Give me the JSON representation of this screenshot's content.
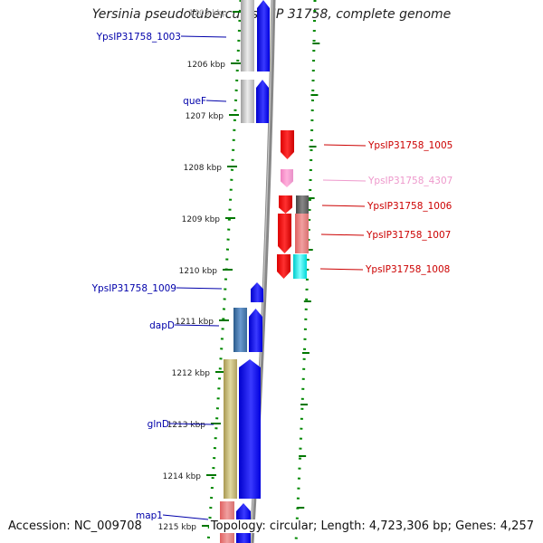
{
  "title": "Yersinia pseudotuberculosis IP 31758, complete genome",
  "footer": {
    "accession": "Accession: NC_009708",
    "stats": "Topology: circular; Length: 4,723,306 bp; Genes: 4,257"
  },
  "colors": {
    "backbone": "#808080",
    "forward_strand": "#0000ee",
    "reverse_strand": "#ee0000",
    "tick": "#007700",
    "left_label": "#0000aa",
    "right_label": "#cc0000",
    "faded_label": "#ee99cc"
  },
  "scale": {
    "unit": "kbp",
    "ticks": [
      "1205 kbp",
      "1206 kbp",
      "1207 kbp",
      "1208 kbp",
      "1209 kbp",
      "1210 kbp",
      "1211 kbp",
      "1212 kbp",
      "1213 kbp",
      "1214 kbp",
      "1215 kbp"
    ]
  },
  "left_labels": [
    {
      "text": "YpsIP31758_1003",
      "color": "#0000aa"
    },
    {
      "text": "queF",
      "color": "#0000aa"
    },
    {
      "text": "YpsIP31758_1009",
      "color": "#0000aa"
    },
    {
      "text": "dapD",
      "color": "#0000aa"
    },
    {
      "text": "glnD",
      "color": "#0000aa"
    },
    {
      "text": "map1",
      "color": "#0000aa"
    }
  ],
  "right_labels": [
    {
      "text": "YpsIP31758_1005",
      "color": "#cc0000"
    },
    {
      "text": "YpsIP31758_4307",
      "color": "#ee99cc"
    },
    {
      "text": "YpsIP31758_1006",
      "color": "#cc0000"
    },
    {
      "text": "YpsIP31758_1007",
      "color": "#cc0000"
    },
    {
      "text": "YpsIP31758_1008",
      "color": "#cc0000"
    }
  ]
}
